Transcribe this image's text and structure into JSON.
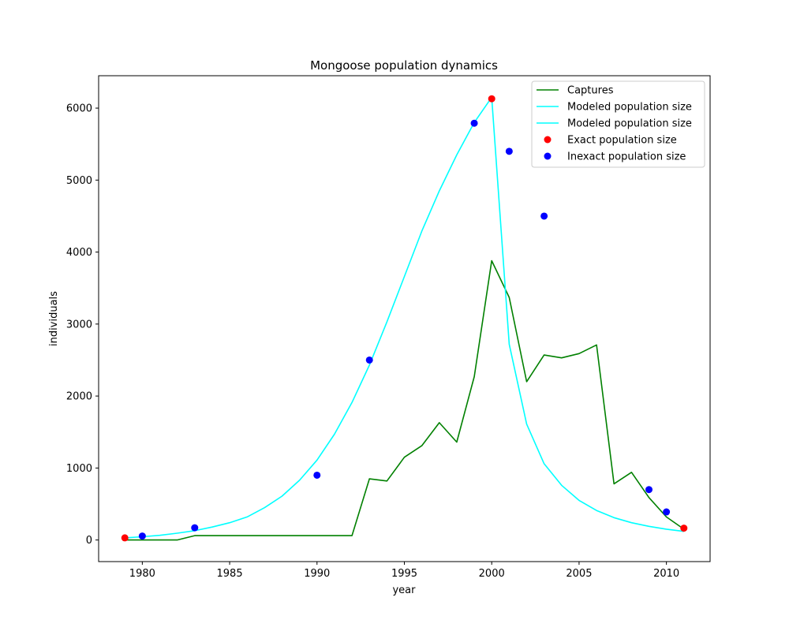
{
  "chart_data": {
    "type": "line",
    "title": "Mongoose population dynamics",
    "xlabel": "year",
    "ylabel": "individuals",
    "xlim": [
      1977.5,
      2012.5
    ],
    "ylim": [
      -300,
      6450
    ],
    "xticks": [
      1980,
      1985,
      1990,
      1995,
      2000,
      2005,
      2010
    ],
    "yticks": [
      0,
      1000,
      2000,
      3000,
      4000,
      5000,
      6000
    ],
    "grid": false,
    "legend_position": "top-right",
    "series": [
      {
        "name": "Captures",
        "kind": "line",
        "color": "#008000",
        "x": [
          1979,
          1980,
          1981,
          1982,
          1983,
          1984,
          1985,
          1986,
          1987,
          1988,
          1989,
          1990,
          1991,
          1992,
          1993,
          1994,
          1995,
          1996,
          1997,
          1998,
          1999,
          2000,
          2001,
          2002,
          2003,
          2004,
          2005,
          2006,
          2007,
          2008,
          2009,
          2010,
          2011
        ],
        "y": [
          0,
          0,
          0,
          0,
          60,
          60,
          60,
          60,
          60,
          60,
          60,
          60,
          60,
          60,
          850,
          820,
          1150,
          1310,
          1630,
          1360,
          2270,
          3880,
          3370,
          2200,
          2570,
          2530,
          2590,
          2710,
          780,
          940,
          590,
          320,
          150
        ]
      },
      {
        "name": "Modeled population size",
        "kind": "line",
        "color": "#00ffff",
        "x": [
          1979,
          1980,
          1981,
          1982,
          1983,
          1984,
          1985,
          1986,
          1987,
          1988,
          1989,
          1990,
          1991,
          1992,
          1993,
          1994,
          1995,
          1996,
          1997,
          1998,
          1999,
          2000
        ],
        "y": [
          30,
          45,
          65,
          95,
          130,
          180,
          240,
          320,
          450,
          610,
          830,
          1110,
          1470,
          1910,
          2430,
          3030,
          3660,
          4290,
          4850,
          5350,
          5800,
          6150
        ]
      },
      {
        "name": "Modeled population size",
        "kind": "line",
        "color": "#00ffff",
        "x": [
          2000,
          2001,
          2002,
          2003,
          2004,
          2005,
          2006,
          2007,
          2008,
          2009,
          2010,
          2011
        ],
        "y": [
          6150,
          2720,
          1610,
          1060,
          760,
          550,
          410,
          310,
          240,
          190,
          150,
          120
        ]
      },
      {
        "name": "Exact population size",
        "kind": "scatter",
        "color": "#ff0000",
        "x": [
          1979,
          2000,
          2011
        ],
        "y": [
          30,
          6130,
          165
        ]
      },
      {
        "name": "Inexact population size",
        "kind": "scatter",
        "color": "#0000ff",
        "x": [
          1980,
          1983,
          1990,
          1993,
          1999,
          2001,
          2003,
          2009,
          2010
        ],
        "y": [
          55,
          170,
          900,
          2500,
          5790,
          5400,
          4500,
          700,
          390
        ]
      }
    ]
  }
}
